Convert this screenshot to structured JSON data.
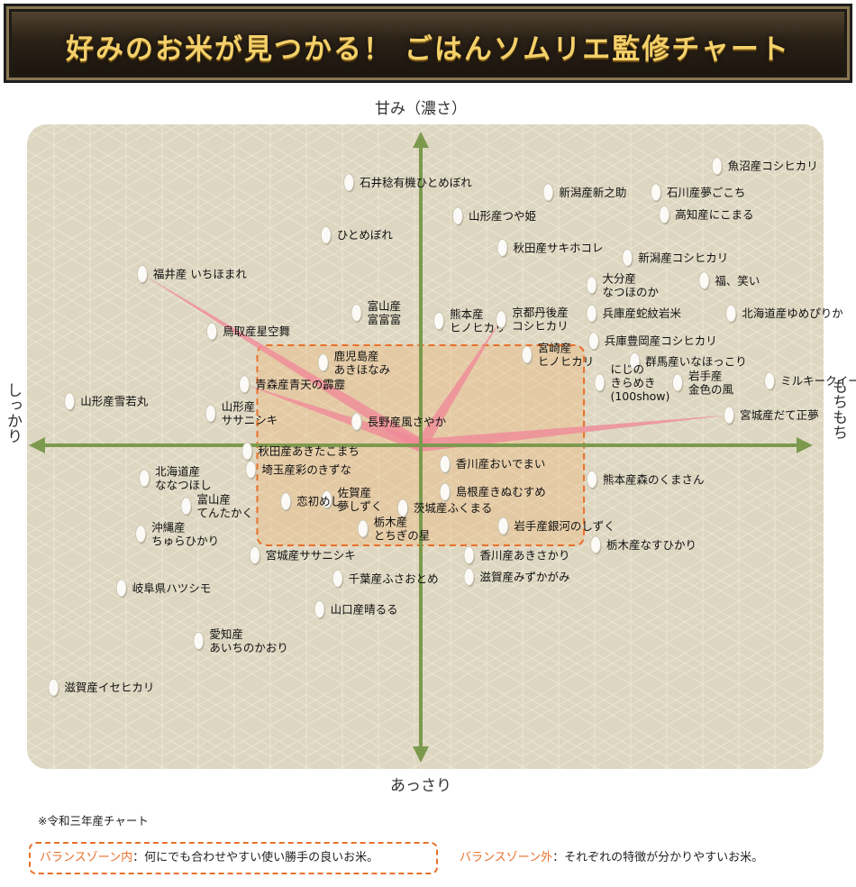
{
  "title": "好みのお米が見つかる！ ごはんソムリエ監修チャート",
  "colors": {
    "panel": "#ddd6c1",
    "axis": "#7c9a4e",
    "rays": "#f08a98",
    "zone_border": "#e8702a",
    "zone_fill": "#f0b26a",
    "title_text": "#f4d06a",
    "banner": "#2a2117"
  },
  "note": "※令和三年産チャート",
  "legend": {
    "inside_label": "バランスゾーン内",
    "inside_text": "：何にでも合わせやすい使い勝手の良いお米。",
    "outside_label": "バランスゾーン外",
    "outside_text": "：それぞれの特徴が分かりやすいお米。"
  },
  "chart_data": {
    "type": "scatter",
    "axes": {
      "top": "甘み（濃さ）",
      "bottom": "あっさり",
      "left": "しっかり",
      "right": "もちもち"
    },
    "xlim": [
      -10,
      10
    ],
    "ylim": [
      -10,
      10
    ],
    "grid": false,
    "balance_zone": {
      "x": [
        -4.07,
        4.06
      ],
      "y": [
        -3.05,
        3.05
      ]
    },
    "rays_from_origin_to": [
      "福井産 いちほまれ",
      "京都丹後産 コシヒカリ",
      "宮城産だて正夢",
      "青森産青天の霹靂"
    ],
    "points": [
      {
        "label": [
          "魚沼産コシヒカリ"
        ],
        "x": 7.37,
        "y": 8.51
      },
      {
        "label": [
          "石井稔有機ひとめぼれ"
        ],
        "x": -1.79,
        "y": 8.01
      },
      {
        "label": [
          "新潟産新之助"
        ],
        "x": 3.17,
        "y": 7.71
      },
      {
        "label": [
          "石川産夢ごこち"
        ],
        "x": 5.85,
        "y": 7.71
      },
      {
        "label": [
          "山形産つや姫"
        ],
        "x": 0.92,
        "y": 6.99
      },
      {
        "label": [
          "高知産にこまる"
        ],
        "x": 6.06,
        "y": 7.03
      },
      {
        "label": [
          "ひとめぼれ"
        ],
        "x": -2.36,
        "y": 6.41
      },
      {
        "label": [
          "秋田産サキホコレ"
        ],
        "x": 2.03,
        "y": 6.02
      },
      {
        "label": [
          "新潟産コシヒカリ"
        ],
        "x": 5.14,
        "y": 5.72
      },
      {
        "label": [
          "福井産 いちほまれ"
        ],
        "x": -6.93,
        "y": 5.22
      },
      {
        "label": [
          "大分産",
          "なつほのか"
        ],
        "x": 4.25,
        "y": 4.88
      },
      {
        "label": [
          "福、笑い"
        ],
        "x": 7.05,
        "y": 5.02
      },
      {
        "label": [
          "富山産",
          "富富富"
        ],
        "x": -1.6,
        "y": 4.04
      },
      {
        "label": [
          "熊本産",
          "ヒノヒカリ"
        ],
        "x": 0.45,
        "y": 3.79
      },
      {
        "label": [
          "京都丹後産",
          "コシヒカリ"
        ],
        "x": 2.0,
        "y": 3.84
      },
      {
        "label": [
          "兵庫産蛇紋岩米"
        ],
        "x": 4.25,
        "y": 4.02
      },
      {
        "label": [
          "北海道産ゆめぴりか"
        ],
        "x": 7.72,
        "y": 4.02
      },
      {
        "label": [
          "鳥取産星空舞"
        ],
        "x": -5.2,
        "y": 3.47
      },
      {
        "label": [
          "兵庫豊岡産コシヒカリ"
        ],
        "x": 4.3,
        "y": 3.18
      },
      {
        "label": [
          "鹿児島産",
          "あきほなみ"
        ],
        "x": -2.43,
        "y": 2.52
      },
      {
        "label": [
          "宮崎産",
          "ヒノヒカリ"
        ],
        "x": 2.64,
        "y": 2.76
      },
      {
        "label": [
          "群馬産いなほっこり"
        ],
        "x": 5.32,
        "y": 2.56
      },
      {
        "label": [
          "青森産青天の霹靂"
        ],
        "x": -4.39,
        "y": 1.86
      },
      {
        "label": [
          "にじの",
          "きらめき",
          "(100show)"
        ],
        "x": 4.45,
        "y": 1.91
      },
      {
        "label": [
          "岩手産",
          "金色の風"
        ],
        "x": 6.39,
        "y": 1.91
      },
      {
        "label": [
          "ミルキークイーン"
        ],
        "x": 8.68,
        "y": 1.96
      },
      {
        "label": [
          "山形産雪若丸"
        ],
        "x": -8.74,
        "y": 1.34
      },
      {
        "label": [
          "山形産",
          "ササニシキ"
        ],
        "x": -5.23,
        "y": 0.97
      },
      {
        "label": [
          "長野産風さやか"
        ],
        "x": -1.6,
        "y": 0.72
      },
      {
        "label": [
          "宮城産だて正夢"
        ],
        "x": 7.67,
        "y": 0.92
      },
      {
        "label": [
          "秋田産あきたこまち"
        ],
        "x": -4.32,
        "y": -0.18
      },
      {
        "label": [
          "北海道産",
          "ななつほし"
        ],
        "x": -6.88,
        "y": -1.0
      },
      {
        "label": [
          "埼玉産彩のきずな"
        ],
        "x": -4.23,
        "y": -0.74
      },
      {
        "label": [
          "香川産おいでまい"
        ],
        "x": 0.6,
        "y": -0.57
      },
      {
        "label": [
          "熊本産森のくまさん"
        ],
        "x": 4.26,
        "y": -1.04
      },
      {
        "label": [
          "富山産",
          "てんたかく"
        ],
        "x": -5.84,
        "y": -1.85
      },
      {
        "label": [
          "佐賀産",
          "夢しずく"
        ],
        "x": -2.34,
        "y": -1.65
      },
      {
        "label": [
          "恋初めし"
        ],
        "x": -3.36,
        "y": -1.71
      },
      {
        "label": [
          "島根産きぬむすめ"
        ],
        "x": 0.6,
        "y": -1.42
      },
      {
        "label": [
          "茨城産ふくまる"
        ],
        "x": -0.45,
        "y": -1.91
      },
      {
        "label": [
          "沖縄産",
          "ちゅらひかり"
        ],
        "x": -6.97,
        "y": -2.7
      },
      {
        "label": [
          "栃木産",
          "とちぎの星"
        ],
        "x": -1.44,
        "y": -2.54
      },
      {
        "label": [
          "岩手産銀河のしずく"
        ],
        "x": 2.05,
        "y": -2.46
      },
      {
        "label": [
          "栃木産なすひかり"
        ],
        "x": 4.35,
        "y": -3.03
      },
      {
        "label": [
          "宮城産ササニシキ"
        ],
        "x": -4.13,
        "y": -3.35
      },
      {
        "label": [
          "香川産あきさかり"
        ],
        "x": 1.2,
        "y": -3.35
      },
      {
        "label": [
          "千葉産ふさおとめ"
        ],
        "x": -2.07,
        "y": -4.06
      },
      {
        "label": [
          "滋賀産みずかがみ"
        ],
        "x": 1.2,
        "y": -4.01
      },
      {
        "label": [
          "岐阜県ハツシモ"
        ],
        "x": -7.45,
        "y": -4.35
      },
      {
        "label": [
          "山口産晴るる"
        ],
        "x": -2.52,
        "y": -5.0
      },
      {
        "label": [
          "愛知産",
          "あいちのかおり"
        ],
        "x": -5.53,
        "y": -5.96
      },
      {
        "label": [
          "滋賀産イセヒカリ"
        ],
        "x": -9.14,
        "y": -7.38
      }
    ]
  }
}
